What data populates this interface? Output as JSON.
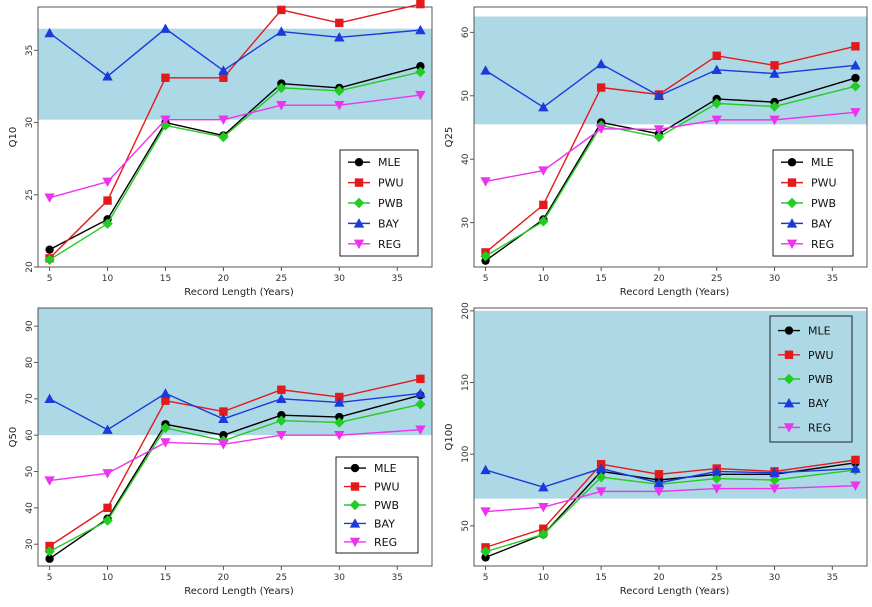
{
  "chart_data": [
    {
      "type": "line",
      "ylabel": "Q10",
      "xlabel": "Record Length (Years)",
      "x": [
        5,
        10,
        15,
        20,
        25,
        30,
        37
      ],
      "xticks": [
        "5",
        "10",
        "15",
        "20",
        "25",
        "30",
        "35"
      ],
      "ylim": [
        20,
        38
      ],
      "yticks": [
        20,
        25,
        30,
        35
      ],
      "band": [
        30.2,
        36.5
      ],
      "legend": "bottom-right",
      "legend_boxed": false,
      "series": [
        {
          "name": "MLE",
          "color": "#000000",
          "marker": "circle",
          "values": [
            21.2,
            23.3,
            30.0,
            29.1,
            32.7,
            32.4,
            33.9
          ]
        },
        {
          "name": "PWU",
          "color": "#e31a1c",
          "marker": "square",
          "values": [
            20.6,
            24.6,
            33.1,
            33.1,
            37.8,
            36.9,
            38.2
          ]
        },
        {
          "name": "PWB",
          "color": "#22cc22",
          "marker": "diamond",
          "values": [
            20.5,
            23.0,
            29.8,
            29.0,
            32.4,
            32.2,
            33.5
          ]
        },
        {
          "name": "BAY",
          "color": "#1a3adb",
          "marker": "triangle-up",
          "values": [
            36.2,
            33.2,
            36.5,
            33.6,
            36.3,
            35.9,
            36.4
          ]
        },
        {
          "name": "REG",
          "color": "#ee33ee",
          "marker": "triangle-down",
          "values": [
            24.8,
            25.9,
            30.2,
            30.2,
            31.2,
            31.2,
            31.9
          ]
        }
      ]
    },
    {
      "type": "line",
      "ylabel": "Q25",
      "xlabel": "Record Length (Years)",
      "x": [
        5,
        10,
        15,
        20,
        25,
        30,
        37
      ],
      "xticks": [
        "5",
        "10",
        "15",
        "20",
        "25",
        "30",
        "35"
      ],
      "ylim": [
        23,
        64
      ],
      "yticks": [
        30,
        40,
        50,
        60
      ],
      "band": [
        45.5,
        62.5
      ],
      "legend": "bottom-right",
      "legend_boxed": false,
      "series": [
        {
          "name": "MLE",
          "color": "#000000",
          "marker": "circle",
          "values": [
            24.0,
            30.5,
            45.8,
            44.0,
            49.5,
            49.0,
            52.8
          ]
        },
        {
          "name": "PWU",
          "color": "#e31a1c",
          "marker": "square",
          "values": [
            25.3,
            32.8,
            51.3,
            50.2,
            56.3,
            54.8,
            57.8
          ]
        },
        {
          "name": "PWB",
          "color": "#22cc22",
          "marker": "diamond",
          "values": [
            24.7,
            30.2,
            45.3,
            43.5,
            48.8,
            48.3,
            51.5
          ]
        },
        {
          "name": "BAY",
          "color": "#1a3adb",
          "marker": "triangle-up",
          "values": [
            54.0,
            48.2,
            55.0,
            50.0,
            54.1,
            53.5,
            54.8
          ]
        },
        {
          "name": "REG",
          "color": "#ee33ee",
          "marker": "triangle-down",
          "values": [
            36.5,
            38.2,
            44.8,
            44.7,
            46.2,
            46.2,
            47.4
          ]
        }
      ]
    },
    {
      "type": "line",
      "ylabel": "Q50",
      "xlabel": "Record Length (Years)",
      "x": [
        5,
        10,
        15,
        20,
        25,
        30,
        37
      ],
      "xticks": [
        "5",
        "10",
        "15",
        "20",
        "25",
        "30",
        "35"
      ],
      "ylim": [
        24,
        95
      ],
      "yticks": [
        30,
        40,
        50,
        60,
        70,
        80,
        90
      ],
      "band": [
        60,
        95
      ],
      "legend": "bottom-right",
      "legend_boxed": false,
      "series": [
        {
          "name": "MLE",
          "color": "#000000",
          "marker": "circle",
          "values": [
            26.0,
            37.0,
            63.0,
            60.0,
            65.5,
            65.0,
            71.0
          ]
        },
        {
          "name": "PWU",
          "color": "#e31a1c",
          "marker": "square",
          "values": [
            29.5,
            40.0,
            69.5,
            66.5,
            72.5,
            70.5,
            75.5
          ]
        },
        {
          "name": "PWB",
          "color": "#22cc22",
          "marker": "diamond",
          "values": [
            28.0,
            36.5,
            62.0,
            58.5,
            64.0,
            63.5,
            68.5
          ]
        },
        {
          "name": "BAY",
          "color": "#1a3adb",
          "marker": "triangle-up",
          "values": [
            70.0,
            61.5,
            71.5,
            64.5,
            70.0,
            69.0,
            71.5
          ]
        },
        {
          "name": "REG",
          "color": "#ee33ee",
          "marker": "triangle-down",
          "values": [
            47.5,
            49.5,
            58.0,
            57.5,
            60.0,
            60.0,
            61.5
          ]
        }
      ]
    },
    {
      "type": "line",
      "ylabel": "Q100",
      "xlabel": "Record Length (Years)",
      "x": [
        5,
        10,
        15,
        20,
        25,
        30,
        37
      ],
      "xticks": [
        "5",
        "10",
        "15",
        "20",
        "25",
        "30",
        "35"
      ],
      "ylim": [
        22,
        202
      ],
      "yticks": [
        50,
        100,
        150,
        200
      ],
      "band": [
        69,
        200
      ],
      "legend": "top-right",
      "legend_boxed": true,
      "series": [
        {
          "name": "MLE",
          "color": "#000000",
          "marker": "circle",
          "values": [
            28,
            44,
            88,
            82,
            86,
            86,
            94
          ]
        },
        {
          "name": "PWU",
          "color": "#e31a1c",
          "marker": "square",
          "values": [
            35,
            48,
            93,
            86,
            90,
            88,
            96
          ]
        },
        {
          "name": "PWB",
          "color": "#22cc22",
          "marker": "diamond",
          "values": [
            32,
            44,
            84,
            79,
            83,
            82,
            89
          ]
        },
        {
          "name": "BAY",
          "color": "#1a3adb",
          "marker": "triangle-up",
          "values": [
            89,
            77,
            90,
            80,
            88,
            87,
            90
          ]
        },
        {
          "name": "REG",
          "color": "#ee33ee",
          "marker": "triangle-down",
          "values": [
            60,
            63,
            74,
            74,
            76,
            76,
            78
          ]
        }
      ]
    }
  ]
}
